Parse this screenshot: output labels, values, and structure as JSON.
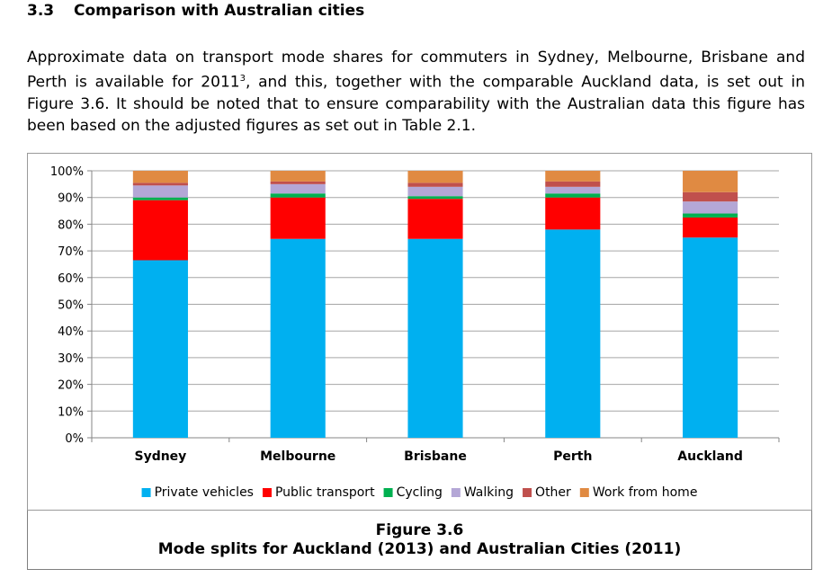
{
  "section": {
    "number": "3.3",
    "title": "Comparison with Australian cities"
  },
  "intro": {
    "text_before_ref": "Approximate data on transport mode shares for commuters in Sydney, Melbourne, Brisbane and Perth is available for 2011",
    "footnote_ref": "3",
    "text_after_ref": ", and this, together with the comparable Auckland data, is set out in Figure 3.6.  It should be noted that to ensure comparability with the Australian data this figure has been based on the adjusted figures as set out in Table 2.1."
  },
  "caption": {
    "figure_label": "Figure 3.6",
    "figure_title": "Mode splits for Auckland (2013) and Australian Cities (2011)"
  },
  "chart_data": {
    "type": "bar",
    "stacked": true,
    "categories": [
      "Sydney",
      "Melbourne",
      "Brisbane",
      "Perth",
      "Auckland"
    ],
    "ylim": [
      0,
      100
    ],
    "yticks": [
      "0%",
      "10%",
      "20%",
      "30%",
      "40%",
      "50%",
      "60%",
      "70%",
      "80%",
      "90%",
      "100%"
    ],
    "grid": true,
    "legend_position": "bottom",
    "xlabel": "",
    "ylabel": "",
    "series": [
      {
        "name": "Private vehicles",
        "color": "#00B0F0",
        "values": [
          66.5,
          74.5,
          74.5,
          78,
          75
        ]
      },
      {
        "name": "Public transport",
        "color": "#FF0000",
        "values": [
          22.5,
          15.5,
          15,
          12,
          7.5
        ]
      },
      {
        "name": "Cycling",
        "color": "#00B050",
        "values": [
          1,
          1.5,
          1,
          1.5,
          1.5
        ]
      },
      {
        "name": "Walking",
        "color": "#B4A7D6",
        "values": [
          4.5,
          3.5,
          3.5,
          2.5,
          4.5
        ]
      },
      {
        "name": "Other",
        "color": "#C0504D",
        "values": [
          1,
          1,
          1.5,
          2,
          3.5
        ]
      },
      {
        "name": "Work from home",
        "color": "#E08A42",
        "values": [
          4.5,
          4,
          4.5,
          4,
          8
        ]
      }
    ]
  }
}
